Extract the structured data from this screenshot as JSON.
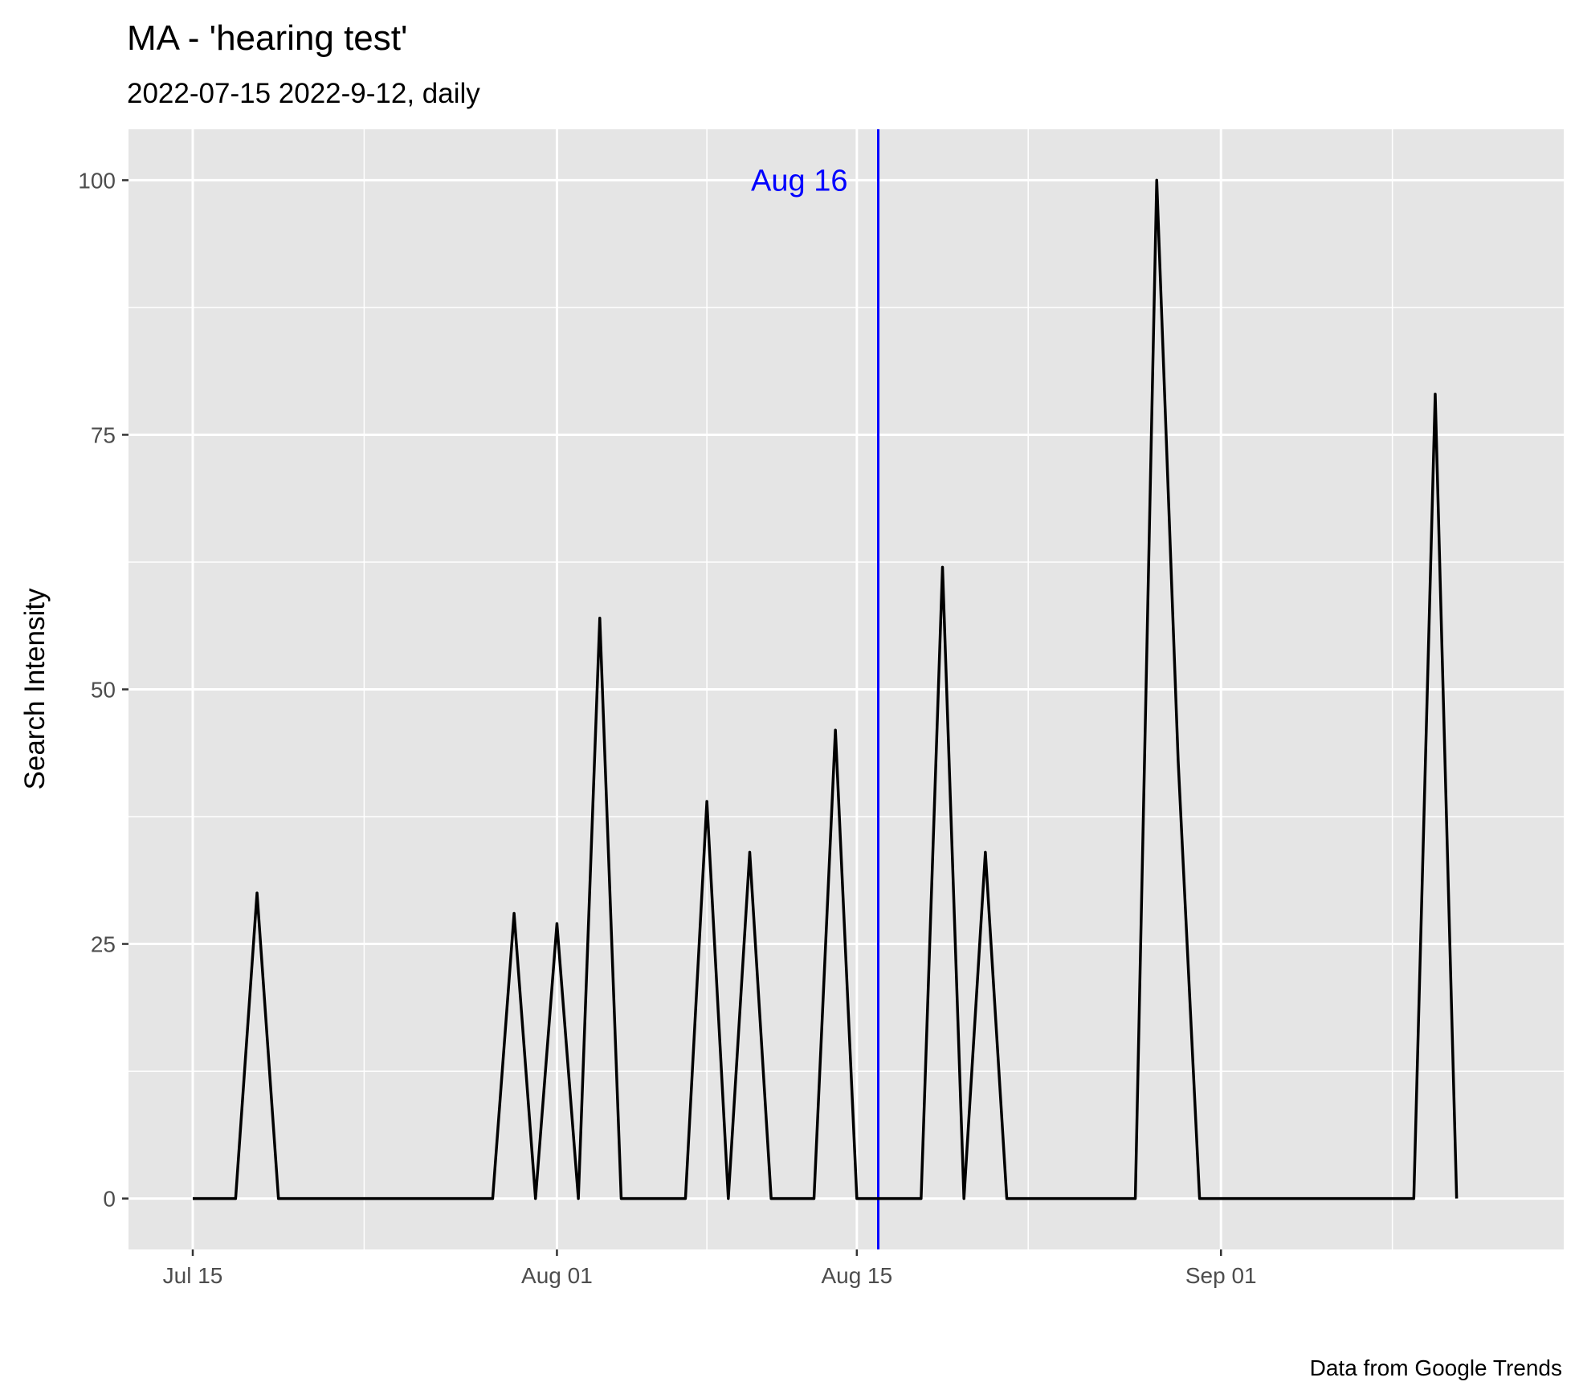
{
  "chart_data": {
    "type": "line",
    "title": "MA  - 'hearing test'",
    "subtitle": "2022-07-15 2022-9-12, daily",
    "xlabel": "",
    "ylabel": "Search Intensity",
    "caption": "Data from Google Trends",
    "x_start": "2022-07-15",
    "xlim": [
      "2022-07-12",
      "2022-09-17"
    ],
    "ylim": [
      -5,
      105
    ],
    "grid": true,
    "legend": "none",
    "y_ticks": [
      0,
      25,
      50,
      75,
      100
    ],
    "y_tick_labels": [
      "0",
      "25",
      "50",
      "75",
      "100"
    ],
    "x_ticks": [
      "2022-07-15",
      "2022-08-01",
      "2022-08-15",
      "2022-09-01"
    ],
    "x_tick_labels": [
      "Jul 15",
      "Aug 01",
      "Aug 15",
      "Sep 01"
    ],
    "line_color": "#000000",
    "vline": {
      "x": "2022-08-16",
      "label": "Aug 16",
      "color": "#0000ff"
    },
    "series": [
      {
        "x": [
          "2022-07-15",
          "2022-07-16",
          "2022-07-17",
          "2022-07-18",
          "2022-07-19",
          "2022-07-20",
          "2022-07-21",
          "2022-07-22",
          "2022-07-23",
          "2022-07-24",
          "2022-07-25",
          "2022-07-26",
          "2022-07-27",
          "2022-07-28",
          "2022-07-29",
          "2022-07-30",
          "2022-07-31",
          "2022-08-01",
          "2022-08-02",
          "2022-08-03",
          "2022-08-04",
          "2022-08-05",
          "2022-08-06",
          "2022-08-07",
          "2022-08-08",
          "2022-08-09",
          "2022-08-10",
          "2022-08-11",
          "2022-08-12",
          "2022-08-13",
          "2022-08-14",
          "2022-08-15",
          "2022-08-16",
          "2022-08-17",
          "2022-08-18",
          "2022-08-19",
          "2022-08-20",
          "2022-08-21",
          "2022-08-22",
          "2022-08-23",
          "2022-08-24",
          "2022-08-25",
          "2022-08-26",
          "2022-08-27",
          "2022-08-28",
          "2022-08-29",
          "2022-08-30",
          "2022-08-31",
          "2022-09-01",
          "2022-09-02",
          "2022-09-03",
          "2022-09-04",
          "2022-09-05",
          "2022-09-06",
          "2022-09-07",
          "2022-09-08",
          "2022-09-09",
          "2022-09-10",
          "2022-09-11",
          "2022-09-12"
        ],
        "values": [
          0,
          0,
          0,
          30,
          0,
          0,
          0,
          0,
          0,
          0,
          0,
          0,
          0,
          0,
          0,
          28,
          0,
          27,
          0,
          57,
          0,
          0,
          0,
          0,
          39,
          0,
          34,
          0,
          0,
          0,
          46,
          0,
          0,
          0,
          0,
          62,
          0,
          34,
          0,
          0,
          0,
          0,
          0,
          0,
          0,
          100,
          43,
          0,
          0,
          0,
          0,
          0,
          0,
          0,
          0,
          0,
          0,
          0,
          79,
          0
        ]
      }
    ]
  }
}
